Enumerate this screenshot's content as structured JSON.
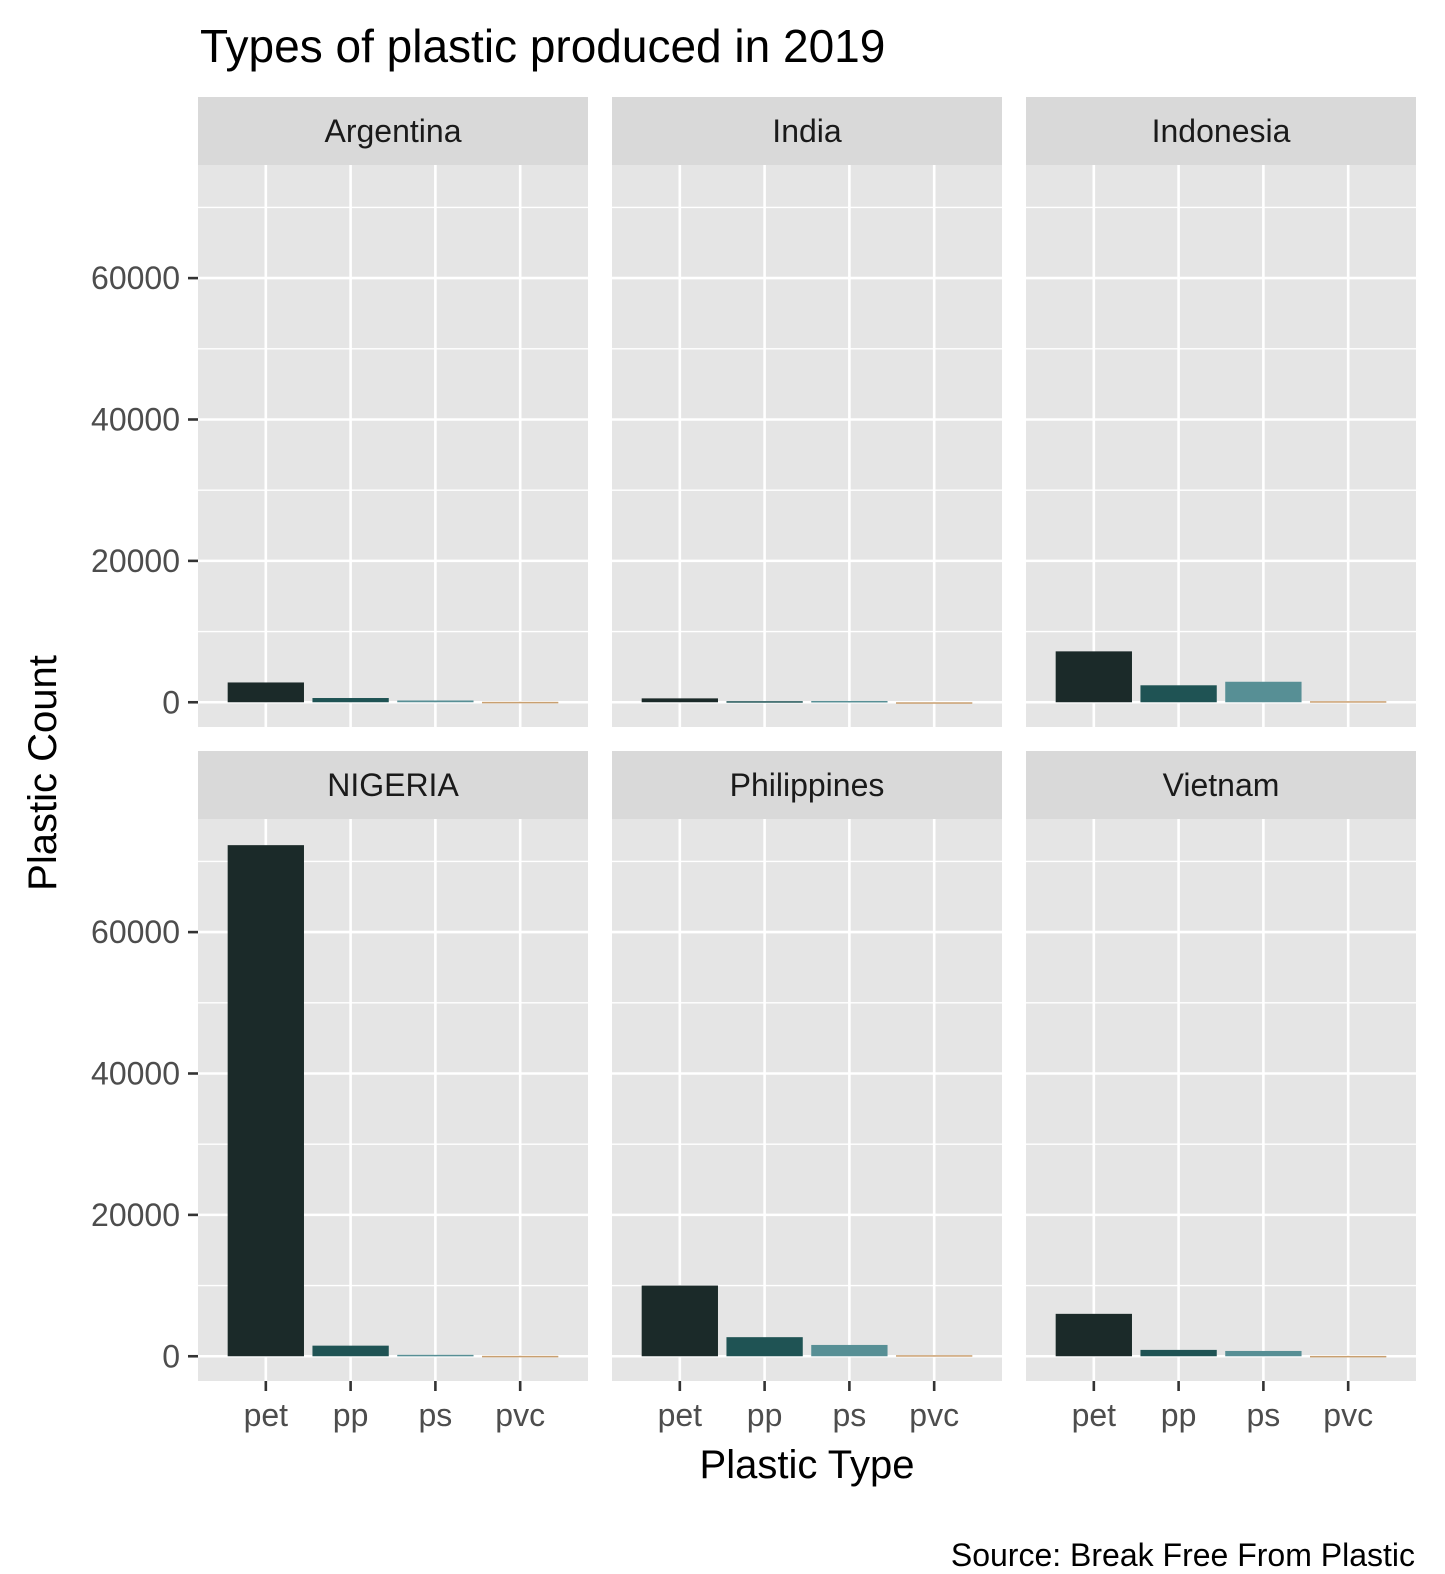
{
  "chart_data": {
    "type": "bar",
    "title": "Types of plastic produced in 2019",
    "xlabel": "Plastic Type",
    "ylabel": "Plastic Count",
    "caption": "Source: Break Free From Plastic",
    "categories": [
      "pet",
      "pp",
      "ps",
      "pvc"
    ],
    "yticks": [
      0,
      20000,
      40000,
      60000
    ],
    "ytick_labels": [
      "0",
      "20000",
      "40000",
      "60000"
    ],
    "ylim": [
      -3500,
      76000
    ],
    "grid": true,
    "colors": {
      "pet": "#1b2a29",
      "pp": "#1f5354",
      "ps": "#578f95",
      "pvc": "#c9a070",
      "panel_bg": "#e5e5e5",
      "strip_bg": "#d9d9d9",
      "grid": "#ffffff"
    },
    "facets": [
      {
        "name": "Argentina",
        "values": [
          2800,
          600,
          250,
          60
        ]
      },
      {
        "name": "India",
        "values": [
          550,
          150,
          180,
          0
        ]
      },
      {
        "name": "Indonesia",
        "values": [
          7200,
          2400,
          2900,
          150
        ]
      },
      {
        "name": "NIGERIA",
        "values": [
          72300,
          1500,
          200,
          60
        ]
      },
      {
        "name": "Philippines",
        "values": [
          10000,
          2700,
          1600,
          150
        ]
      },
      {
        "name": "Vietnam",
        "values": [
          6000,
          900,
          750,
          50
        ]
      }
    ]
  }
}
